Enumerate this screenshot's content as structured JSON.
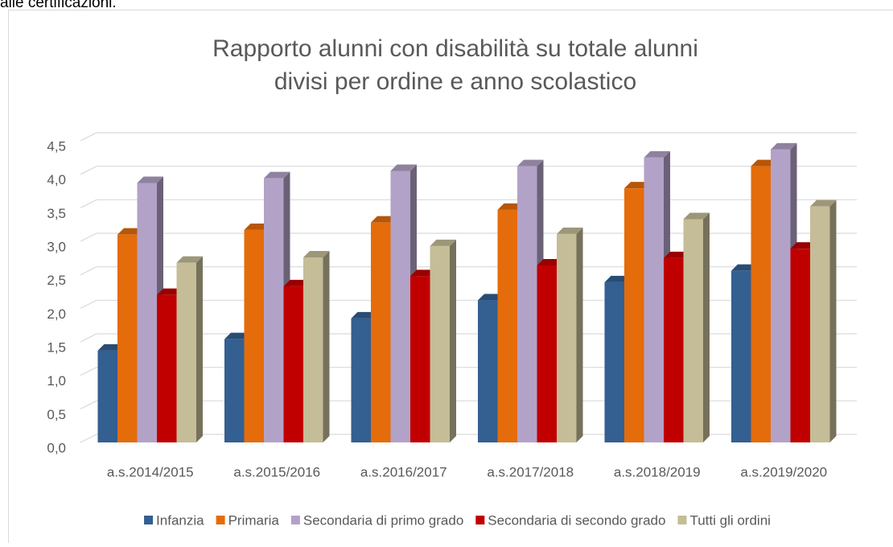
{
  "page_text": "alle certificazioni.",
  "chart_data": {
    "type": "bar3d",
    "title": [
      "Rapporto alunni con disabilità su totale alunni",
      "divisi per ordine e anno scolastico"
    ],
    "categories": [
      "a.s.2014/2015",
      "a.s.2015/2016",
      "a.s.2016/2017",
      "a.s.2017/2018",
      "a.s.2018/2019",
      "a.s.2019/2020"
    ],
    "series": [
      {
        "name": "Infanzia",
        "color": "#335f91",
        "values": [
          1.37,
          1.54,
          1.85,
          2.12,
          2.39,
          2.56
        ]
      },
      {
        "name": "Primaria",
        "color": "#e46c0a",
        "values": [
          3.1,
          3.17,
          3.28,
          3.47,
          3.79,
          4.12
        ]
      },
      {
        "name": "Secondaria di primo grado",
        "color": "#b3a2c7",
        "values": [
          3.87,
          3.94,
          4.05,
          4.12,
          4.25,
          4.37
        ]
      },
      {
        "name": "Secondaria di secondo grado",
        "color": "#c00000",
        "values": [
          2.2,
          2.33,
          2.48,
          2.64,
          2.75,
          2.89
        ]
      },
      {
        "name": "Tutti gli ordini",
        "color": "#c4bd97",
        "values": [
          2.68,
          2.76,
          2.93,
          3.11,
          3.33,
          3.52
        ]
      }
    ],
    "ylim": [
      0,
      4.5
    ],
    "yticks": [
      {
        "value": 0,
        "label": "0,0"
      },
      {
        "value": 0.5,
        "label": "0,5"
      },
      {
        "value": 1,
        "label": "1,0"
      },
      {
        "value": 1.5,
        "label": "1,5"
      },
      {
        "value": 2,
        "label": "2,0"
      },
      {
        "value": 2.5,
        "label": "2,5"
      },
      {
        "value": 3,
        "label": "3,0"
      },
      {
        "value": 3.5,
        "label": "3,5"
      },
      {
        "value": 4,
        "label": "4,0"
      },
      {
        "value": 4.5,
        "label": "4,5"
      }
    ],
    "grid": true,
    "legend": "bottom"
  }
}
